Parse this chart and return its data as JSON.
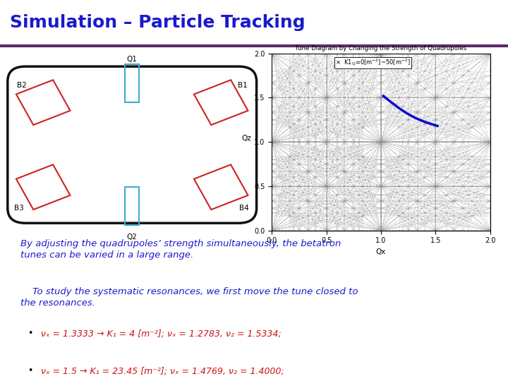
{
  "title": "Simulation – Particle Tracking",
  "title_color": "#1a1acc",
  "title_fontsize": 18,
  "bg_color": "#ffffff",
  "header_line_color": "#5c2d6e",
  "italic_text_1": "By adjusting the quadrupoles’ strength simultaneously, the betatron\ntunes can be varied in a large range.",
  "italic_text_2": "    To study the systematic resonances, we first move the tune closed to\nthe resonances.",
  "bullet1_red": "νₓ = 1.3333 → K₁ = 4 [m⁻²]; νₓ = 1.2783, ν₂ = 1.5334;",
  "bullet2_red": "νₓ = 1.5 → K₁ = 23.45 [m⁻²]; νₓ = 1.4769, ν₂ = 1.4000;",
  "text_color_blue": "#1a1acc",
  "text_color_red": "#cc1111",
  "quad_color": "#44aacc",
  "ring_color": "#111111",
  "dipole_color": "#cc2222",
  "tune_line_color": "#0000cc",
  "res_line_color": "#888888",
  "tune_diagram_title": "Tune Diagram by Changing the Strength of Quadrupoles",
  "legend_text": "* K1_Q=0[m^{-2}]~50[m^{-2}]"
}
